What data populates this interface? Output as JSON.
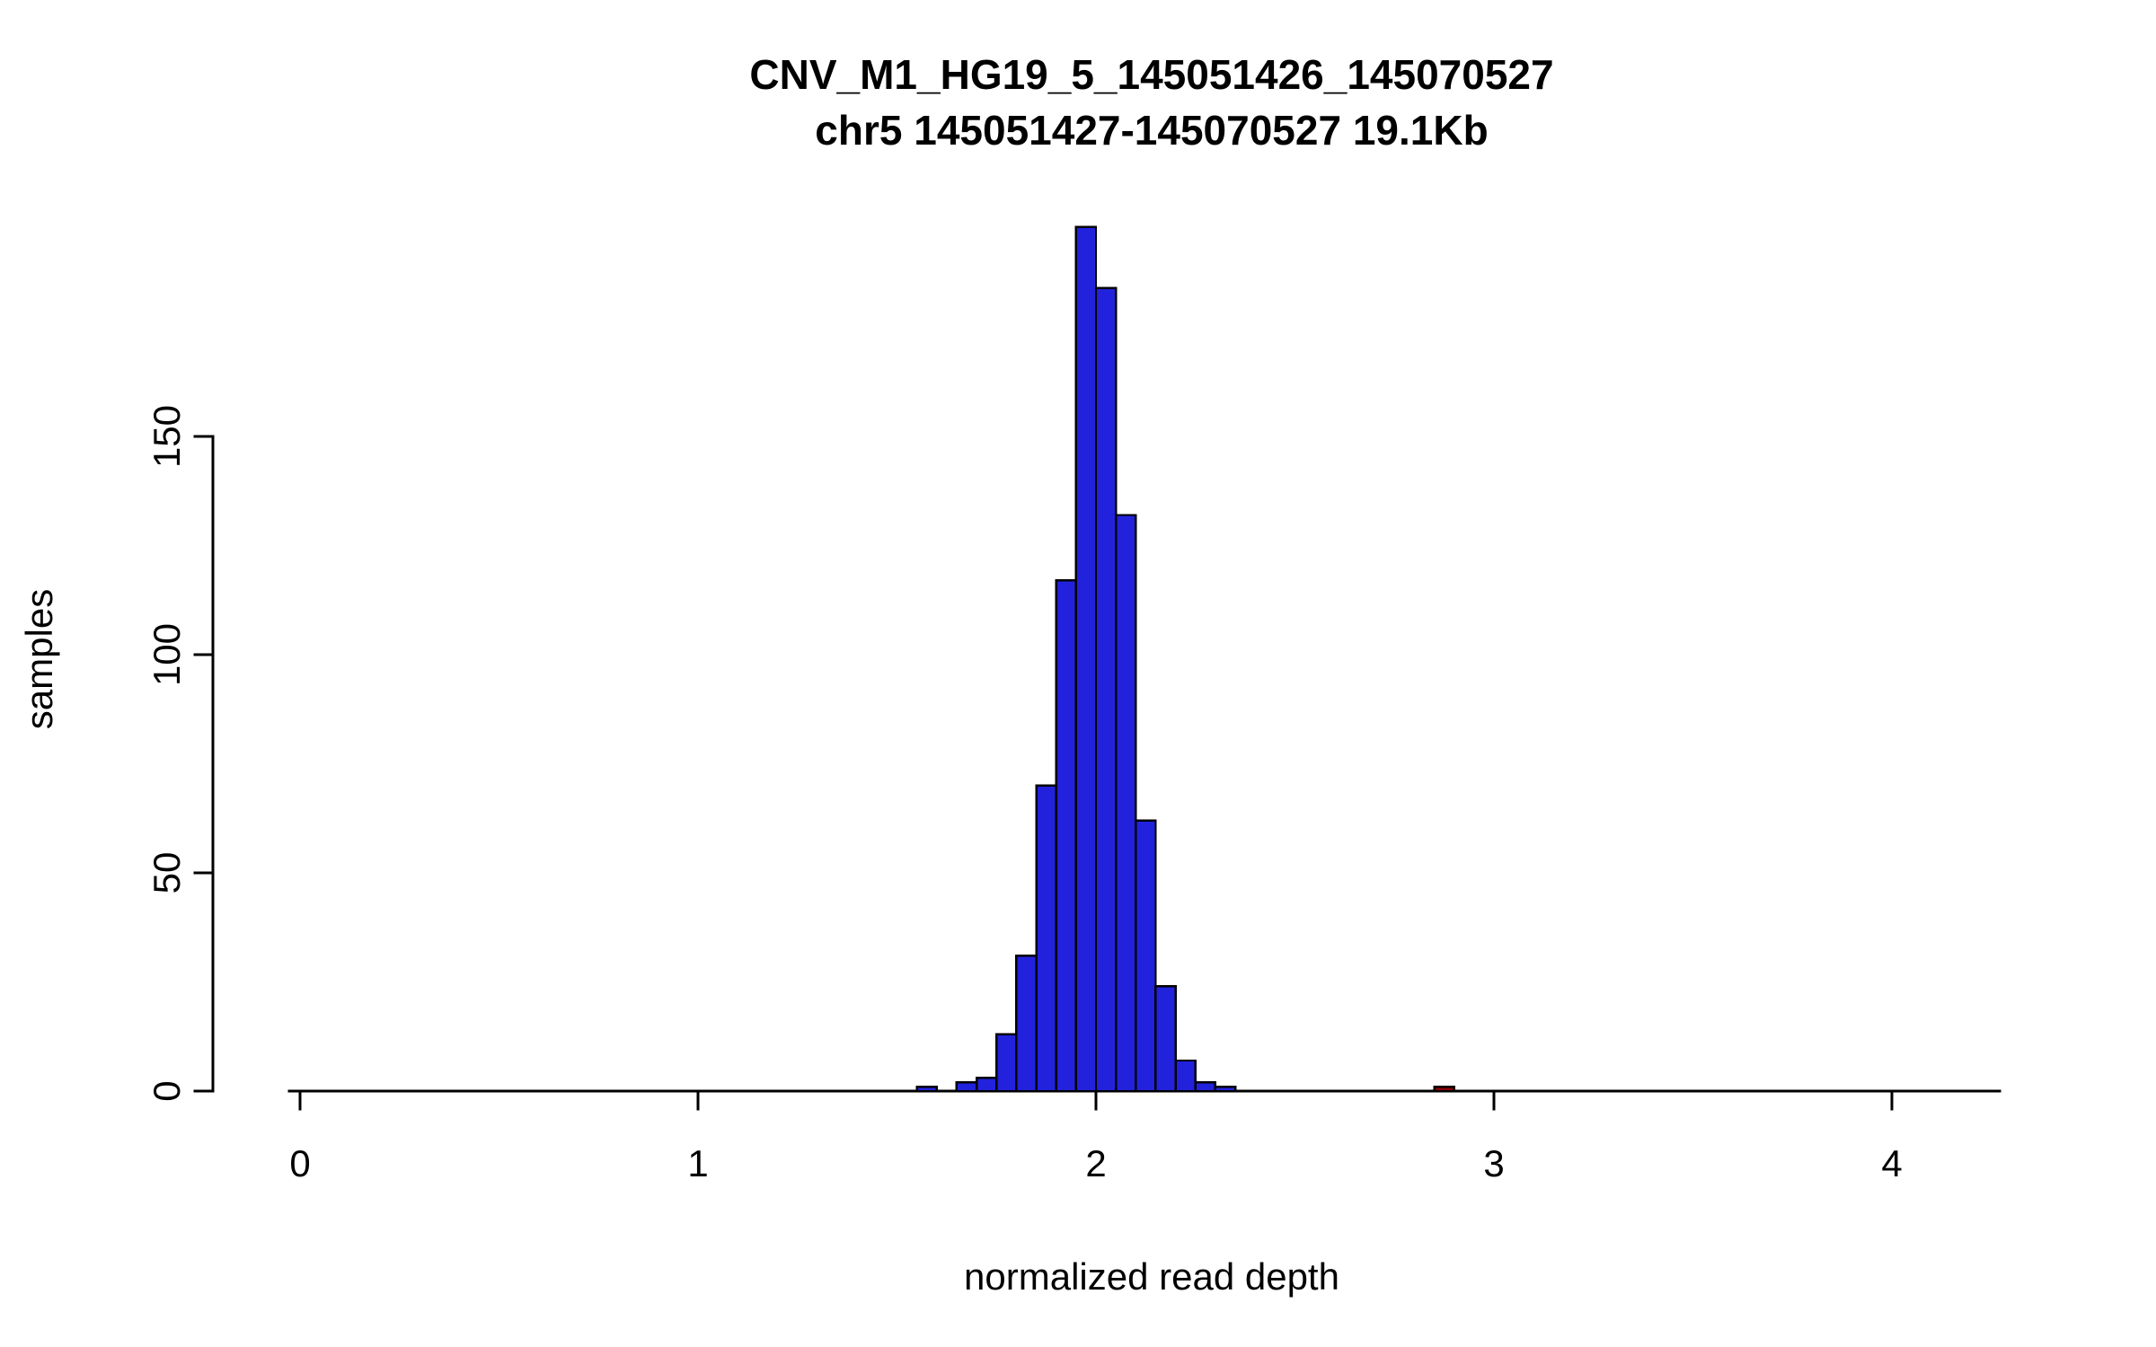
{
  "page": {
    "background": "#FFFFFF"
  },
  "chart_data": {
    "type": "bar",
    "subtype": "histogram",
    "title": "CNV_M1_HG19_5_145051426_145070527",
    "subtitle": "chr5 145051427-145070527 19.1Kb",
    "xlabel": "normalized read depth",
    "ylabel": "samples",
    "xlim": [
      0,
      4.3
    ],
    "ylim": [
      0,
      200
    ],
    "x_ticks": [
      0,
      1,
      2,
      3,
      4
    ],
    "y_ticks": [
      0,
      50,
      100,
      150
    ],
    "bin_width": 0.05,
    "grid": false,
    "legend": false,
    "colors": {
      "blue": "#2222DD",
      "red": "#8B0000",
      "axis": "#000000"
    },
    "bars": [
      {
        "x": 1.55,
        "count": 1,
        "color": "blue"
      },
      {
        "x": 1.6,
        "count": 0,
        "color": "blue"
      },
      {
        "x": 1.65,
        "count": 2,
        "color": "blue"
      },
      {
        "x": 1.7,
        "count": 3,
        "color": "blue"
      },
      {
        "x": 1.75,
        "count": 13,
        "color": "blue"
      },
      {
        "x": 1.8,
        "count": 31,
        "color": "blue"
      },
      {
        "x": 1.85,
        "count": 70,
        "color": "blue"
      },
      {
        "x": 1.9,
        "count": 117,
        "color": "blue"
      },
      {
        "x": 1.95,
        "count": 198,
        "color": "blue"
      },
      {
        "x": 2.0,
        "count": 184,
        "color": "blue"
      },
      {
        "x": 2.05,
        "count": 132,
        "color": "blue"
      },
      {
        "x": 2.1,
        "count": 62,
        "color": "blue"
      },
      {
        "x": 2.15,
        "count": 24,
        "color": "blue"
      },
      {
        "x": 2.2,
        "count": 7,
        "color": "blue"
      },
      {
        "x": 2.25,
        "count": 2,
        "color": "blue"
      },
      {
        "x": 2.3,
        "count": 1,
        "color": "blue"
      },
      {
        "x": 2.85,
        "count": 1,
        "color": "red"
      }
    ]
  }
}
